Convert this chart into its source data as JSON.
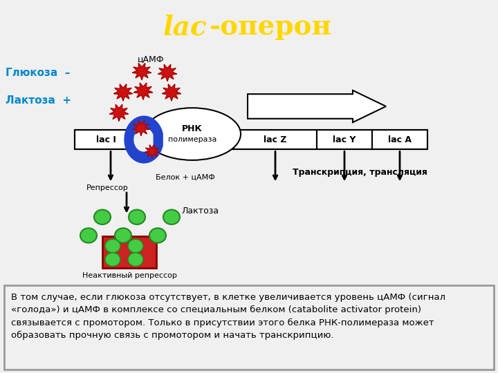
{
  "title_italic": "lac",
  "title_normal": "-оперон",
  "title_color": "#FFD700",
  "title_bg": "#1a1a1a",
  "title_fontsize": 28,
  "bg_color": "#f0f0f0",
  "text_box_bg": "#ffcccc",
  "text_box_text": "В том случае, если глюкоза отсутствует, в клетке увеличивается уровень цАМФ (сигнал\n«голода») и цАМФ в комплексе со специальным белком (catabolite activator protein)\nсвязывается с промотором. Только в присутствии этого белка РНК-полимераза может\nобразовать прочную связь с промотором и начать транскрипцию.",
  "label_glyukoza": "Глюкоза  –",
  "label_laktoza": "Лактоза  +",
  "camp_label": "цАМФ",
  "repressor_label": "Репрессор",
  "belok_label": "Белок + цАМФ",
  "laktosa_label": "Лактоза",
  "neakt_label": "Неактивный репрессор",
  "transcription_label": "Транскрипция, трансляция"
}
